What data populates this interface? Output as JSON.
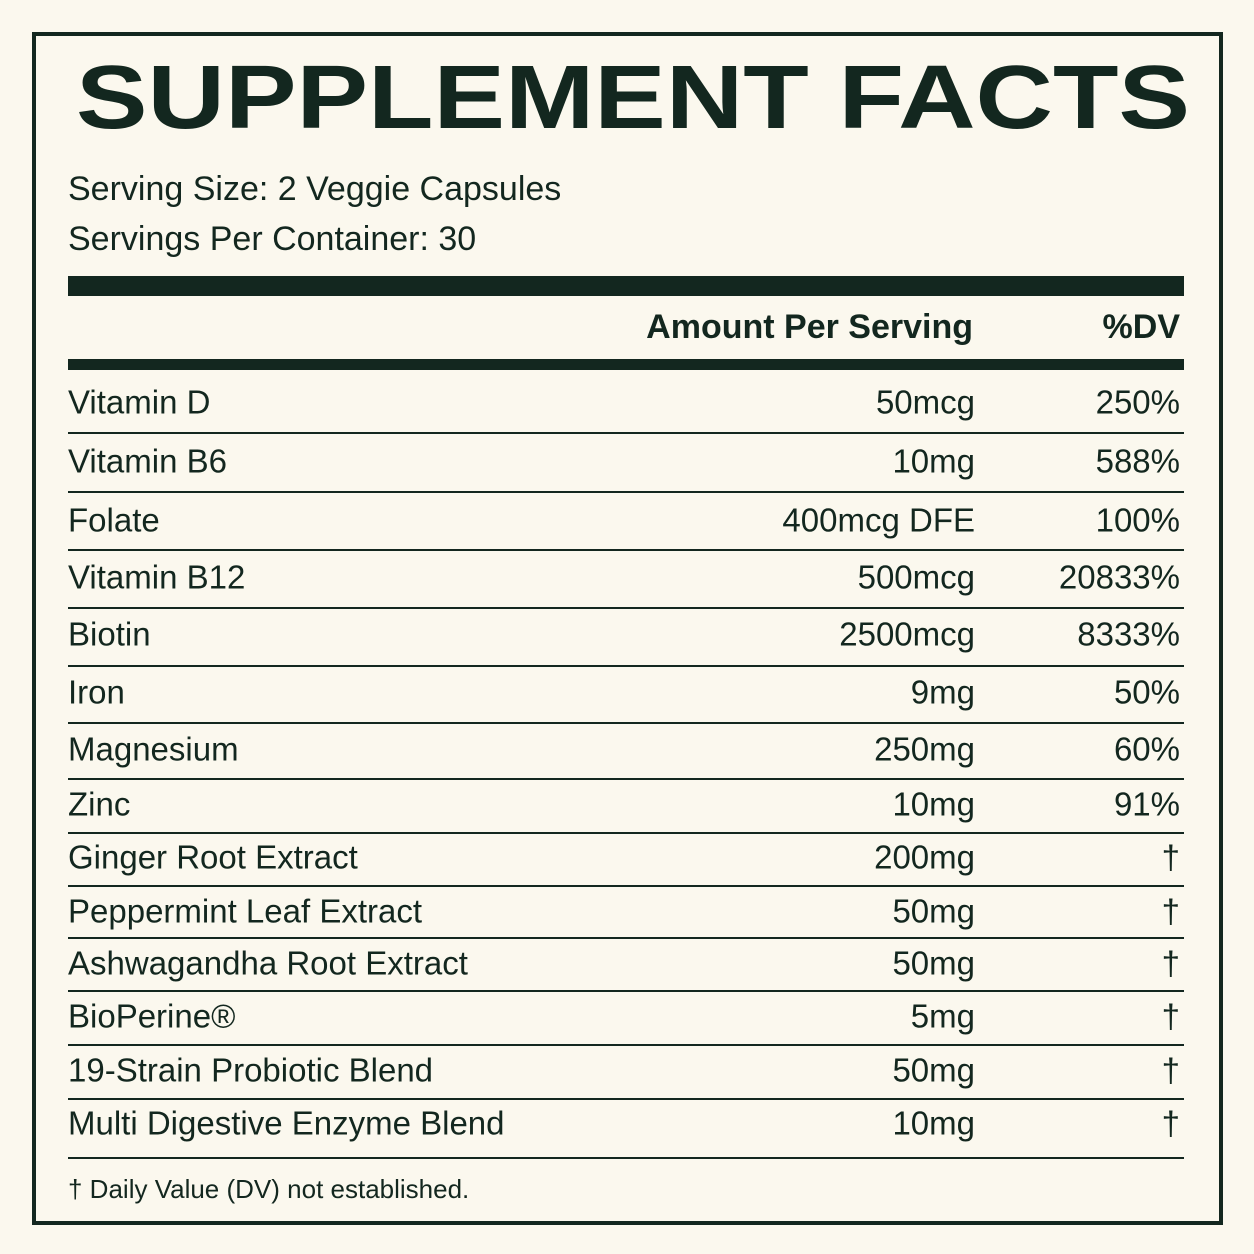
{
  "title": "SUPPLEMENT FACTS",
  "serving_size": "Serving Size: 2 Veggie Capsules",
  "servings_per_container": "Servings Per Container: 30",
  "table": {
    "header": [
      "Amount Per Serving",
      "%DV"
    ],
    "rows": [
      [
        "Vitamin D",
        "50mcg",
        "250%"
      ],
      [
        "Vitamin B6",
        "10mg",
        "588%"
      ],
      [
        "Folate",
        "400mcg DFE",
        "100%"
      ],
      [
        "Vitamin B12",
        "500mcg",
        "20833%"
      ],
      [
        "Biotin",
        "2500mcg",
        "8333%"
      ],
      [
        "Iron",
        "9mg",
        "50%"
      ],
      [
        "Magnesium",
        "250mg",
        "60%"
      ],
      [
        "Zinc",
        "10mg",
        "91%"
      ],
      [
        "Ginger Root Extract",
        "200mg",
        "†"
      ],
      [
        "Peppermint Leaf Extract",
        "50mg",
        "†"
      ],
      [
        "Ashwagandha Root Extract",
        "50mg",
        "†"
      ],
      [
        "BioPerine®",
        "5mg",
        "†"
      ],
      [
        "19-Strain Probiotic Blend",
        "50mg",
        "†"
      ],
      [
        "Multi Digestive Enzyme Blend",
        "10mg",
        "†"
      ]
    ]
  },
  "footnote": "† Daily Value (DV) not established."
}
